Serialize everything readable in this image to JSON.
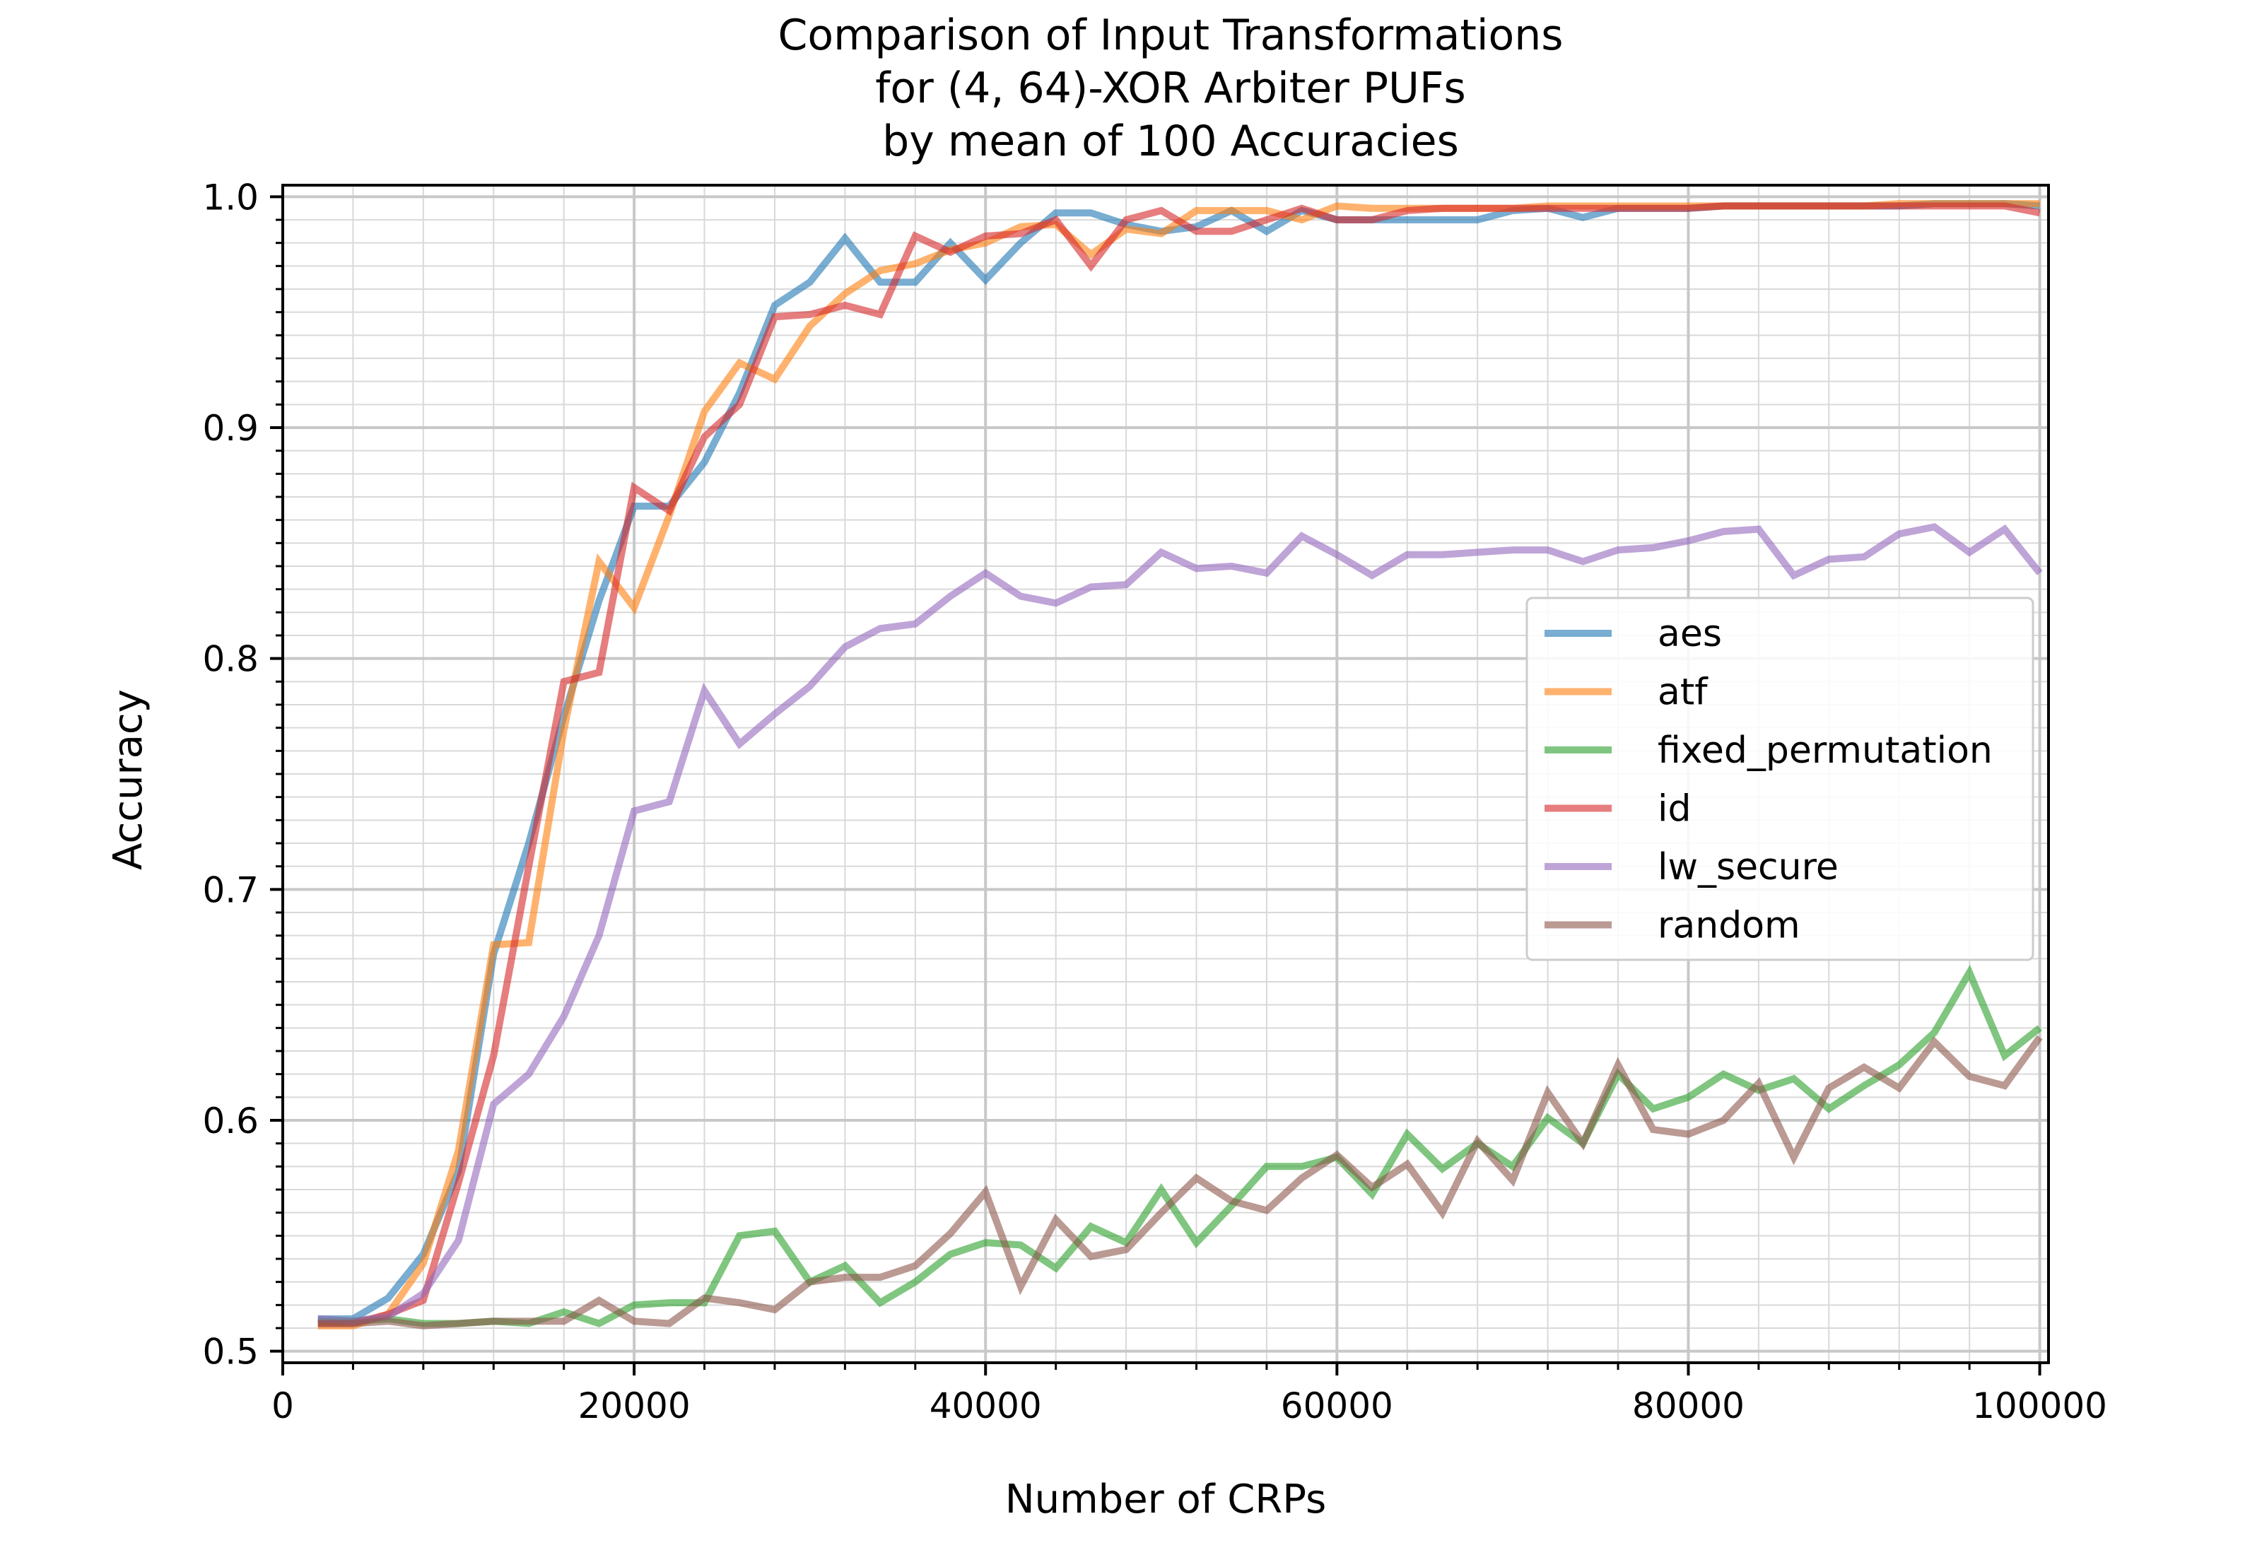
{
  "chart_data": {
    "type": "line",
    "title": [
      "Comparison of Input Transformations",
      "for (4, 64)-XOR Arbiter PUFs",
      "by mean of 100 Accuracies"
    ],
    "xlabel": "Number of CRPs",
    "ylabel": "Accuracy",
    "xlim": [
      0,
      100500
    ],
    "ylim": [
      0.495,
      1.005
    ],
    "xticks": [
      0,
      20000,
      40000,
      60000,
      80000,
      100000
    ],
    "xtick_labels": [
      "0",
      "20000",
      "40000",
      "60000",
      "80000",
      "100000"
    ],
    "yticks": [
      0.5,
      0.6,
      0.7,
      0.8,
      0.9,
      1.0
    ],
    "ytick_labels": [
      "0.5",
      "0.6",
      "0.7",
      "0.8",
      "0.9",
      "1.0"
    ],
    "grid": true,
    "minor_grid": true,
    "legend_position": "center-right",
    "x": [
      2000,
      4000,
      6000,
      8000,
      10000,
      12000,
      14000,
      16000,
      18000,
      20000,
      22000,
      24000,
      26000,
      28000,
      30000,
      32000,
      34000,
      36000,
      38000,
      40000,
      42000,
      44000,
      46000,
      48000,
      50000,
      52000,
      54000,
      56000,
      58000,
      60000,
      62000,
      64000,
      66000,
      68000,
      70000,
      72000,
      74000,
      76000,
      78000,
      80000,
      82000,
      84000,
      86000,
      88000,
      90000,
      92000,
      94000,
      96000,
      98000,
      100000
    ],
    "series": [
      {
        "name": "aes",
        "color": "#1f77b4",
        "values": [
          0.514,
          0.514,
          0.523,
          0.542,
          0.578,
          0.672,
          0.72,
          0.775,
          0.825,
          0.866,
          0.866,
          0.885,
          0.915,
          0.953,
          0.963,
          0.982,
          0.963,
          0.963,
          0.98,
          0.964,
          0.98,
          0.993,
          0.993,
          0.988,
          0.985,
          0.987,
          0.994,
          0.985,
          0.994,
          0.99,
          0.99,
          0.99,
          0.99,
          0.99,
          0.994,
          0.995,
          0.991,
          0.995,
          0.995,
          0.995,
          0.996,
          0.996,
          0.996,
          0.996,
          0.996,
          0.996,
          0.997,
          0.997,
          0.997,
          0.996
        ]
      },
      {
        "name": "atf",
        "color": "#ff7f0e",
        "values": [
          0.511,
          0.511,
          0.516,
          0.538,
          0.587,
          0.676,
          0.677,
          0.769,
          0.842,
          0.822,
          0.862,
          0.907,
          0.928,
          0.921,
          0.944,
          0.958,
          0.968,
          0.971,
          0.977,
          0.98,
          0.987,
          0.988,
          0.975,
          0.986,
          0.984,
          0.994,
          0.994,
          0.994,
          0.99,
          0.996,
          0.995,
          0.995,
          0.995,
          0.995,
          0.995,
          0.996,
          0.996,
          0.996,
          0.996,
          0.996,
          0.996,
          0.996,
          0.996,
          0.996,
          0.996,
          0.997,
          0.997,
          0.997,
          0.997,
          0.997
        ]
      },
      {
        "name": "fixed_permutation",
        "color": "#2ca02c",
        "values": [
          0.513,
          0.513,
          0.514,
          0.512,
          0.512,
          0.513,
          0.512,
          0.517,
          0.512,
          0.52,
          0.521,
          0.521,
          0.55,
          0.552,
          0.53,
          0.537,
          0.521,
          0.53,
          0.542,
          0.547,
          0.546,
          0.536,
          0.554,
          0.547,
          0.57,
          0.547,
          0.563,
          0.58,
          0.58,
          0.584,
          0.568,
          0.594,
          0.579,
          0.59,
          0.58,
          0.601,
          0.59,
          0.62,
          0.605,
          0.61,
          0.62,
          0.613,
          0.618,
          0.605,
          0.615,
          0.624,
          0.638,
          0.664,
          0.628,
          0.64
        ]
      },
      {
        "name": "id",
        "color": "#d62728",
        "values": [
          0.512,
          0.512,
          0.516,
          0.522,
          0.573,
          0.628,
          0.71,
          0.79,
          0.794,
          0.874,
          0.864,
          0.896,
          0.91,
          0.948,
          0.949,
          0.953,
          0.949,
          0.983,
          0.976,
          0.983,
          0.984,
          0.99,
          0.97,
          0.99,
          0.994,
          0.985,
          0.985,
          0.99,
          0.995,
          0.99,
          0.99,
          0.994,
          0.995,
          0.995,
          0.995,
          0.995,
          0.995,
          0.995,
          0.995,
          0.995,
          0.996,
          0.996,
          0.996,
          0.996,
          0.996,
          0.996,
          0.996,
          0.996,
          0.996,
          0.993
        ]
      },
      {
        "name": "lw_secure",
        "color": "#9467bd",
        "values": [
          0.514,
          0.513,
          0.515,
          0.525,
          0.548,
          0.607,
          0.62,
          0.645,
          0.68,
          0.734,
          0.738,
          0.786,
          0.763,
          0.776,
          0.788,
          0.805,
          0.813,
          0.815,
          0.827,
          0.837,
          0.827,
          0.824,
          0.831,
          0.832,
          0.846,
          0.839,
          0.84,
          0.837,
          0.853,
          0.845,
          0.836,
          0.845,
          0.845,
          0.846,
          0.847,
          0.847,
          0.842,
          0.847,
          0.848,
          0.851,
          0.855,
          0.856,
          0.836,
          0.843,
          0.844,
          0.854,
          0.857,
          0.846,
          0.856,
          0.837
        ]
      },
      {
        "name": "random",
        "color": "#8c564b",
        "values": [
          0.512,
          0.512,
          0.513,
          0.511,
          0.512,
          0.513,
          0.513,
          0.513,
          0.522,
          0.513,
          0.512,
          0.523,
          0.521,
          0.518,
          0.53,
          0.532,
          0.532,
          0.537,
          0.551,
          0.569,
          0.528,
          0.557,
          0.541,
          0.544,
          0.56,
          0.575,
          0.565,
          0.561,
          0.575,
          0.585,
          0.571,
          0.581,
          0.56,
          0.591,
          0.574,
          0.612,
          0.59,
          0.624,
          0.596,
          0.594,
          0.6,
          0.616,
          0.584,
          0.614,
          0.623,
          0.614,
          0.634,
          0.619,
          0.615,
          0.636
        ]
      }
    ]
  }
}
